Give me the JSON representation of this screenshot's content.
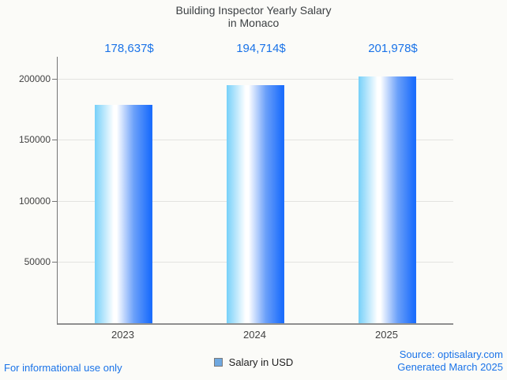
{
  "chart": {
    "title_line1": "Building Inspector Yearly Salary",
    "title_line2": "in Monaco",
    "legend_label": "Salary in USD"
  },
  "chart_data": {
    "type": "bar",
    "title": "Building Inspector Yearly Salary in Monaco",
    "categories": [
      "2023",
      "2024",
      "2025"
    ],
    "values": [
      178637,
      194714,
      201978
    ],
    "value_labels": [
      "178,637$",
      "194,714$",
      "201,978$"
    ],
    "series_name": "Salary in USD",
    "xlabel": "",
    "ylabel": "",
    "ylim": [
      0,
      218000
    ],
    "yticks": [
      50000,
      100000,
      150000,
      200000
    ],
    "ytick_labels": [
      "50000",
      "100000",
      "150000",
      "200000"
    ],
    "grid": true,
    "legend_position": "bottom"
  },
  "footer": {
    "disclaimer": "For informational use only",
    "source": "Source: optisalary.com",
    "generated": "Generated March 2025"
  },
  "colors": {
    "accent_blue": "#1a73e8",
    "title_text": "#3c4043",
    "axis_text": "#424242",
    "axis_line": "#757575",
    "baseline": "#8f8f8f",
    "gridline": "#e3e3e0",
    "background": "#fbfbf8",
    "bar_gradient_left": "#76d0f9",
    "bar_gradient_mid": "#ffffff",
    "bar_gradient_right": "#1d6efc",
    "legend_swatch_fill": "#6fa8e0",
    "legend_swatch_border": "#7a7a7a"
  }
}
